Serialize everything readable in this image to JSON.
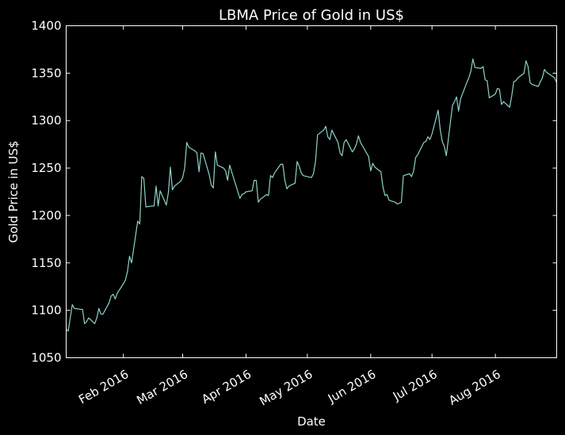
{
  "chart_data": {
    "type": "line",
    "title": "LBMA Price of Gold in US$",
    "xlabel": "Date",
    "ylabel": "Gold Price in US$",
    "xlim": [
      "2016-01-04",
      "2016-08-31"
    ],
    "ylim": [
      1050,
      1400
    ],
    "y_ticks": [
      1050,
      1100,
      1150,
      1200,
      1250,
      1300,
      1350,
      1400
    ],
    "x_ticks": [
      {
        "date": "2016-02-01",
        "label": "Feb 2016"
      },
      {
        "date": "2016-03-01",
        "label": "Mar 2016"
      },
      {
        "date": "2016-04-01",
        "label": "Apr 2016"
      },
      {
        "date": "2016-05-01",
        "label": "May 2016"
      },
      {
        "date": "2016-06-01",
        "label": "Jun 2016"
      },
      {
        "date": "2016-07-01",
        "label": "Jul 2016"
      },
      {
        "date": "2016-08-01",
        "label": "Aug 2016"
      }
    ],
    "grid": false,
    "line_color": "#8dd3c7",
    "series": [
      {
        "x": [
          "2016-01-04",
          "2016-01-05",
          "2016-01-06",
          "2016-01-07",
          "2016-01-08",
          "2016-01-11",
          "2016-01-12",
          "2016-01-13",
          "2016-01-14",
          "2016-01-15",
          "2016-01-18",
          "2016-01-19",
          "2016-01-20",
          "2016-01-21",
          "2016-01-22",
          "2016-01-25",
          "2016-01-26",
          "2016-01-27",
          "2016-01-28",
          "2016-01-29",
          "2016-02-01",
          "2016-02-02",
          "2016-02-03",
          "2016-02-04",
          "2016-02-05",
          "2016-02-08",
          "2016-02-09",
          "2016-02-10",
          "2016-02-11",
          "2016-02-12",
          "2016-02-15",
          "2016-02-16",
          "2016-02-17",
          "2016-02-18",
          "2016-02-19",
          "2016-02-22",
          "2016-02-23",
          "2016-02-24",
          "2016-02-25",
          "2016-02-26",
          "2016-02-29",
          "2016-03-01",
          "2016-03-02",
          "2016-03-03",
          "2016-03-04",
          "2016-03-07",
          "2016-03-08",
          "2016-03-09",
          "2016-03-10",
          "2016-03-11",
          "2016-03-14",
          "2016-03-15",
          "2016-03-16",
          "2016-03-17",
          "2016-03-18",
          "2016-03-21",
          "2016-03-22",
          "2016-03-23",
          "2016-03-24",
          "2016-03-29",
          "2016-03-30",
          "2016-03-31",
          "2016-04-01",
          "2016-04-04",
          "2016-04-05",
          "2016-04-06",
          "2016-04-07",
          "2016-04-08",
          "2016-04-11",
          "2016-04-12",
          "2016-04-13",
          "2016-04-14",
          "2016-04-15",
          "2016-04-18",
          "2016-04-19",
          "2016-04-20",
          "2016-04-21",
          "2016-04-22",
          "2016-04-25",
          "2016-04-26",
          "2016-04-27",
          "2016-04-28",
          "2016-04-29",
          "2016-05-03",
          "2016-05-04",
          "2016-05-05",
          "2016-05-06",
          "2016-05-09",
          "2016-05-10",
          "2016-05-11",
          "2016-05-12",
          "2016-05-13",
          "2016-05-16",
          "2016-05-17",
          "2016-05-18",
          "2016-05-19",
          "2016-05-20",
          "2016-05-23",
          "2016-05-24",
          "2016-05-25",
          "2016-05-26",
          "2016-05-27",
          "2016-05-31",
          "2016-06-01",
          "2016-06-02",
          "2016-06-03",
          "2016-06-06",
          "2016-06-07",
          "2016-06-08",
          "2016-06-09",
          "2016-06-10",
          "2016-06-13",
          "2016-06-14",
          "2016-06-15",
          "2016-06-16",
          "2016-06-17",
          "2016-06-20",
          "2016-06-21",
          "2016-06-22",
          "2016-06-23",
          "2016-06-24",
          "2016-06-27",
          "2016-06-28",
          "2016-06-29",
          "2016-06-30",
          "2016-07-01",
          "2016-07-04",
          "2016-07-05",
          "2016-07-06",
          "2016-07-07",
          "2016-07-08",
          "2016-07-11",
          "2016-07-12",
          "2016-07-13",
          "2016-07-14",
          "2016-07-15",
          "2016-07-18",
          "2016-07-19",
          "2016-07-20",
          "2016-07-21",
          "2016-07-22",
          "2016-07-25",
          "2016-07-26",
          "2016-07-27",
          "2016-07-28",
          "2016-07-29",
          "2016-08-01",
          "2016-08-02",
          "2016-08-03",
          "2016-08-04",
          "2016-08-05",
          "2016-08-08",
          "2016-08-09",
          "2016-08-10",
          "2016-08-11",
          "2016-08-12",
          "2016-08-15",
          "2016-08-16",
          "2016-08-17",
          "2016-08-18",
          "2016-08-19",
          "2016-08-22",
          "2016-08-23",
          "2016-08-24",
          "2016-08-25",
          "2016-08-26",
          "2016-08-30",
          "2016-08-31"
        ],
        "y": [
          1080,
          1078,
          1092,
          1106,
          1102,
          1101,
          1101,
          1086,
          1088,
          1092,
          1086,
          1092,
          1102,
          1096,
          1096,
          1108,
          1115,
          1117,
          1112,
          1118,
          1128,
          1132,
          1141,
          1157,
          1150,
          1194,
          1191,
          1241,
          1239,
          1209,
          1210,
          1210,
          1231,
          1210,
          1226,
          1211,
          1224,
          1251,
          1227,
          1231,
          1236,
          1240,
          1250,
          1277,
          1272,
          1268,
          1266,
          1246,
          1266,
          1265,
          1243,
          1232,
          1229,
          1267,
          1253,
          1250,
          1247,
          1237,
          1253,
          1218,
          1222,
          1223,
          1225,
          1226,
          1237,
          1237,
          1214,
          1217,
          1222,
          1221,
          1242,
          1240,
          1245,
          1254,
          1254,
          1237,
          1228,
          1231,
          1234,
          1257,
          1252,
          1245,
          1242,
          1240,
          1244,
          1257,
          1285,
          1290,
          1294,
          1283,
          1280,
          1290,
          1277,
          1266,
          1263,
          1277,
          1280,
          1267,
          1270,
          1275,
          1284,
          1277,
          1262,
          1247,
          1255,
          1251,
          1246,
          1230,
          1221,
          1222,
          1216,
          1214,
          1212,
          1213,
          1214,
          1242,
          1244,
          1241,
          1247,
          1261,
          1264,
          1277,
          1278,
          1283,
          1280,
          1286,
          1311,
          1291,
          1278,
          1273,
          1263,
          1316,
          1320,
          1325,
          1310,
          1323,
          1340,
          1345,
          1352,
          1365,
          1356,
          1355,
          1357,
          1343,
          1342,
          1324,
          1328,
          1334,
          1333,
          1317,
          1320,
          1314,
          1326,
          1341,
          1342,
          1345,
          1350,
          1363,
          1357,
          1340,
          1338,
          1336,
          1341,
          1345,
          1354,
          1351,
          1345,
          1340
        ]
      }
    ]
  }
}
